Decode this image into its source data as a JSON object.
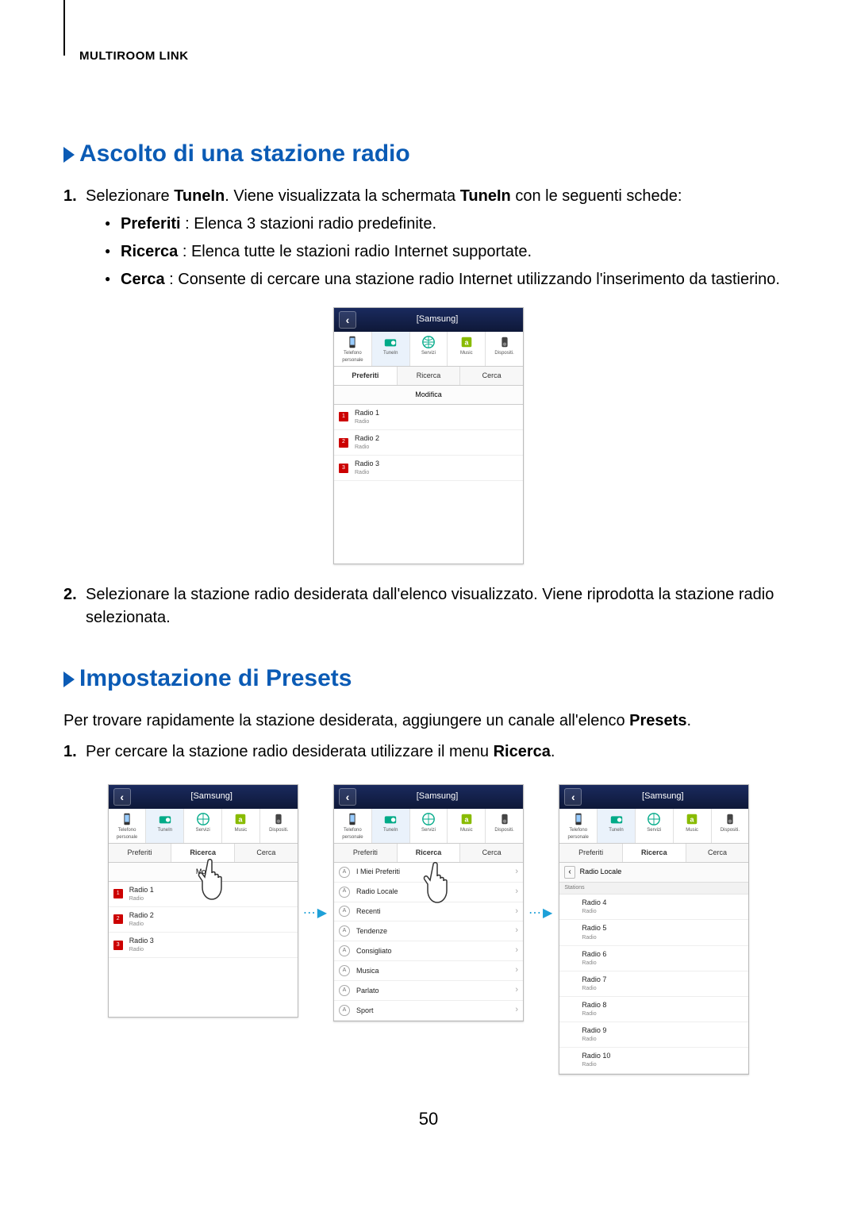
{
  "header_label": "MULTIROOM LINK",
  "section1": {
    "title": "Ascolto di una stazione radio",
    "step1_pre": "Selezionare ",
    "step1_b1": "TuneIn",
    "step1_mid": ". Viene visualizzata la schermata ",
    "step1_b2": "TuneIn",
    "step1_post": " con le seguenti schede:",
    "bullets": {
      "b1_label": "Preferiti",
      "b1_text": " : Elenca 3 stazioni radio predefinite.",
      "b2_label": "Ricerca",
      "b2_text": " : Elenca tutte le stazioni radio Internet supportate.",
      "b3_label": "Cerca",
      "b3_text": " : Consente di cercare una stazione radio Internet utilizzando l'inserimento da tastierino."
    },
    "step2": "Selezionare la stazione radio desiderata dall'elenco visualizzato. Viene riprodotta la stazione radio selezionata."
  },
  "section2": {
    "title": "Impostazione di Presets",
    "intro_pre": "Per trovare rapidamente la stazione desiderata, aggiungere un canale all'elenco ",
    "intro_b": "Presets",
    "intro_post": ".",
    "step1_pre": "Per cercare la stazione radio desiderata utilizzare il menu ",
    "step1_b": "Ricerca",
    "step1_post": "."
  },
  "phone": {
    "title": "[Samsung]",
    "icons": {
      "i1": "Telefono personale",
      "i2": "TuneIn",
      "i3": "Servizi",
      "i4": "Music",
      "i5": "Dispositi."
    },
    "tabs": {
      "t1": "Preferiti",
      "t2": "Ricerca",
      "t3": "Cerca"
    },
    "edit": "Modifica",
    "edit_short": "Mod",
    "radios": [
      {
        "n": "1",
        "name": "Radio 1",
        "sub": "Radio"
      },
      {
        "n": "2",
        "name": "Radio 2",
        "sub": "Radio"
      },
      {
        "n": "3",
        "name": "Radio 3",
        "sub": "Radio"
      }
    ],
    "browse": [
      "I Miei Preferiti",
      "Radio Locale",
      "Recenti",
      "Tendenze",
      "Consigliato",
      "Musica",
      "Parlato",
      "Sport"
    ],
    "local_label": "Radio Locale",
    "stations_label": "Stations",
    "stations": [
      {
        "name": "Radio 4",
        "sub": "Radio"
      },
      {
        "name": "Radio 5",
        "sub": "Radio"
      },
      {
        "name": "Radio 6",
        "sub": "Radio"
      },
      {
        "name": "Radio 7",
        "sub": "Radio"
      },
      {
        "name": "Radio 8",
        "sub": "Radio"
      },
      {
        "name": "Radio 9",
        "sub": "Radio"
      },
      {
        "name": "Radio 10",
        "sub": "Radio"
      }
    ]
  },
  "arrow": "⋯▶",
  "page_number": "50",
  "colors": {
    "heading": "#0b5bb5",
    "phone_header_top": "#1a2a5e",
    "phone_header_bottom": "#0e1838",
    "flag": "#c00",
    "arrow": "#1ea0d8"
  }
}
